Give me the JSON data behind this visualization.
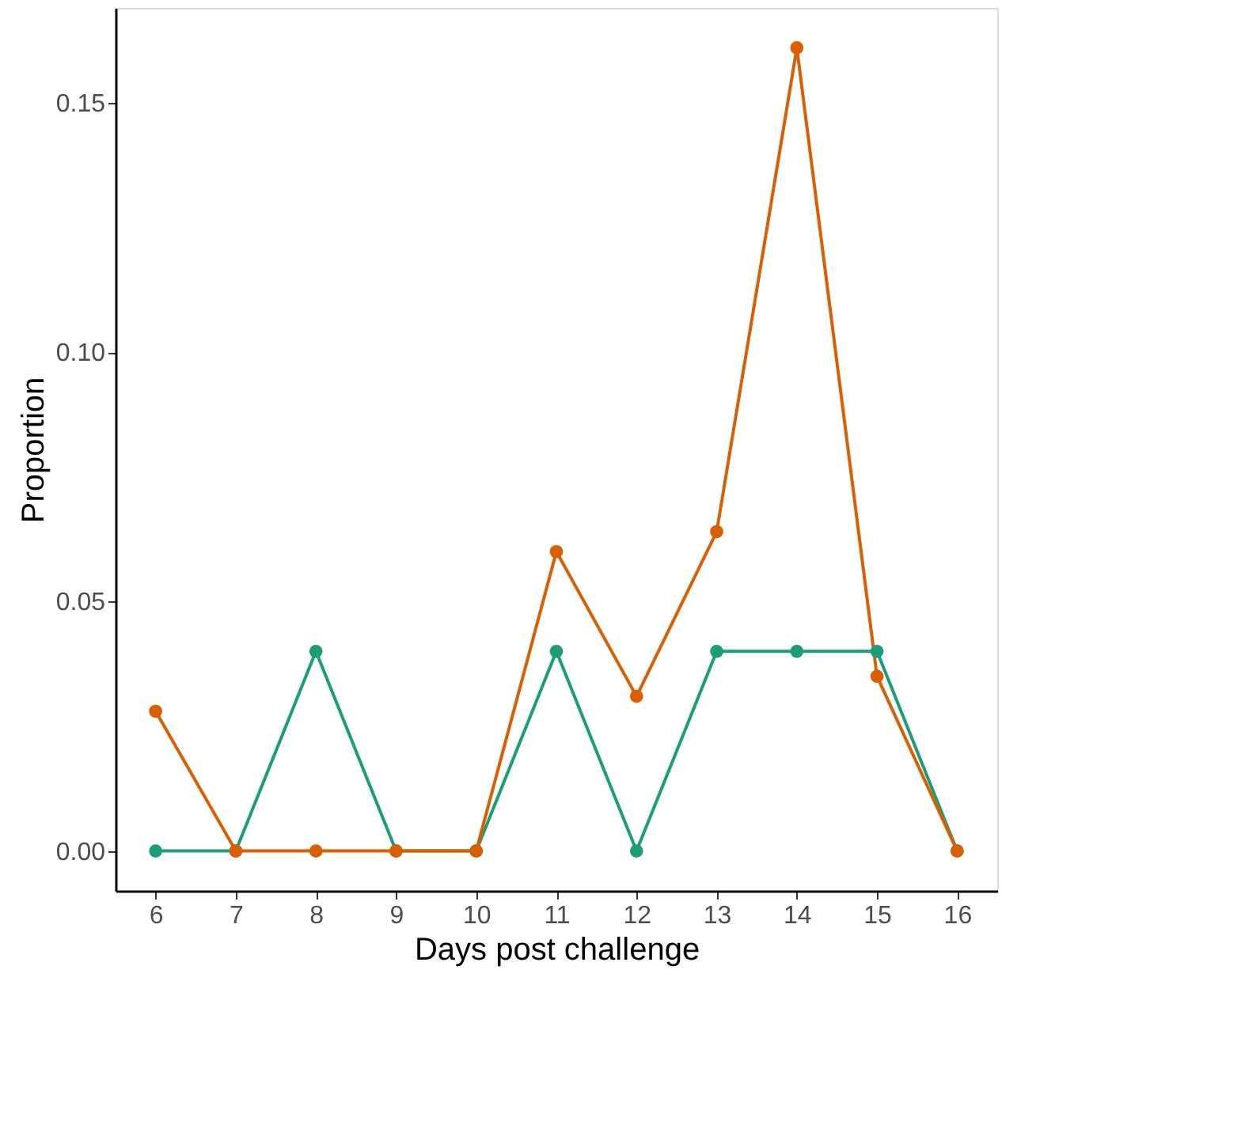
{
  "chart_data": {
    "type": "line",
    "xlabel": "Days post challenge",
    "ylabel": "Proportion",
    "x": [
      6,
      7,
      8,
      9,
      10,
      11,
      12,
      13,
      14,
      15,
      16
    ],
    "series": [
      {
        "color": "#1b9e77",
        "values": [
          0,
          0,
          0.04,
          0,
          0,
          0.04,
          0,
          0.04,
          0.04,
          0.04,
          0
        ]
      },
      {
        "color": "#d95f02",
        "values": [
          0.028,
          0,
          0,
          0,
          0,
          0.06,
          0.031,
          0.064,
          0.161,
          0.035,
          0
        ]
      }
    ],
    "xlim": [
      5.5,
      16.5
    ],
    "ylim": [
      -0.008,
      0.169
    ],
    "xticks": [
      6,
      7,
      8,
      9,
      10,
      11,
      12,
      13,
      14,
      15,
      16
    ],
    "yticks": [
      {
        "value": 0,
        "label": "0.00"
      },
      {
        "value": 0.05,
        "label": "0.05"
      },
      {
        "value": 0.1,
        "label": "0.10"
      },
      {
        "value": 0.15,
        "label": "0.15"
      }
    ],
    "grid": false,
    "marker": "circle",
    "line_style": "solid"
  }
}
